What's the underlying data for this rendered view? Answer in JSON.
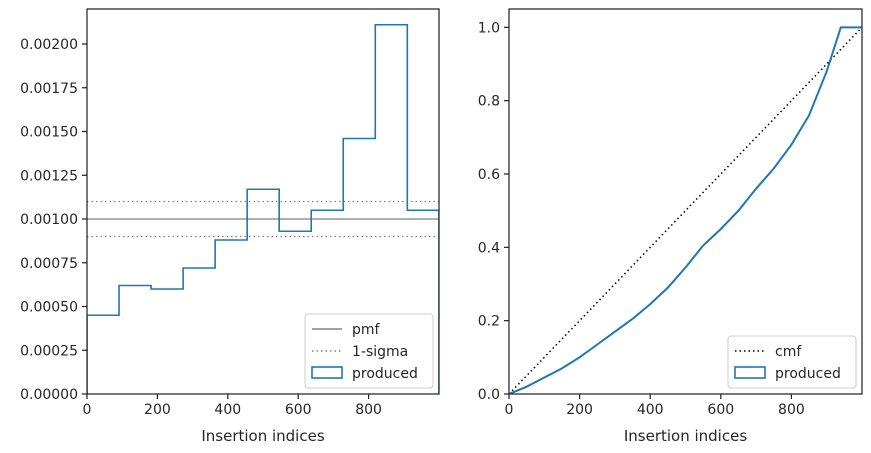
{
  "chart_data": [
    {
      "type": "step",
      "xlabel": "Insertion indices",
      "ylabel": "",
      "xlim": [
        0,
        1000
      ],
      "ylim": [
        0,
        0.0022
      ],
      "x_ticks": [
        0,
        200,
        400,
        600,
        800
      ],
      "x_tick_labels": [
        "0",
        "200",
        "400",
        "600",
        "800"
      ],
      "y_ticks": [
        0,
        0.00025,
        0.0005,
        0.00075,
        0.001,
        0.00125,
        0.0015,
        0.00175,
        0.002
      ],
      "y_tick_labels": [
        "0.00000",
        "0.00025",
        "0.00050",
        "0.00075",
        "0.00100",
        "0.00125",
        "0.00150",
        "0.00175",
        "0.00200"
      ],
      "pmf": 0.001,
      "sigma_band": [
        0.0009,
        0.0011
      ],
      "series": [
        {
          "name": "produced",
          "bin_edges": [
            0,
            91,
            182,
            273,
            364,
            455,
            546,
            637,
            728,
            819,
            910,
            1000
          ],
          "values": [
            0.00045,
            0.00062,
            0.0006,
            0.00072,
            0.00088,
            0.00117,
            0.00093,
            0.00105,
            0.00146,
            0.00211,
            0.00105
          ],
          "color": "#1f77b4"
        }
      ],
      "legend": {
        "placement": "lower right",
        "entries": [
          {
            "label": "pmf",
            "style": "solid",
            "color": "#808080"
          },
          {
            "label": "1-sigma",
            "style": "dotted",
            "color": "#808080"
          },
          {
            "label": "produced",
            "style": "patch",
            "color": "#1f77b4"
          }
        ]
      },
      "grid": false
    },
    {
      "type": "line",
      "xlabel": "Insertion indices",
      "ylabel": "",
      "xlim": [
        0,
        1000
      ],
      "ylim": [
        0,
        1.05
      ],
      "x_ticks": [
        0,
        200,
        400,
        600,
        800
      ],
      "x_tick_labels": [
        "0",
        "200",
        "400",
        "600",
        "800"
      ],
      "y_ticks": [
        0,
        0.2,
        0.4,
        0.6,
        0.8,
        1.0
      ],
      "y_tick_labels": [
        "0.0",
        "0.2",
        "0.4",
        "0.6",
        "0.8",
        "1.0"
      ],
      "series": [
        {
          "name": "cmf",
          "style": "dotted",
          "color": "#000000",
          "x": [
            0,
            1000
          ],
          "y": [
            0,
            1.0
          ]
        },
        {
          "name": "produced",
          "style": "solid",
          "color": "#1f77b4",
          "x": [
            0,
            50,
            100,
            150,
            200,
            250,
            300,
            350,
            400,
            450,
            500,
            550,
            600,
            650,
            700,
            750,
            800,
            850,
            900,
            940,
            960,
            1000
          ],
          "y": [
            0,
            0.02,
            0.045,
            0.07,
            0.1,
            0.135,
            0.17,
            0.205,
            0.245,
            0.29,
            0.345,
            0.405,
            0.45,
            0.5,
            0.56,
            0.615,
            0.68,
            0.76,
            0.88,
            1.0,
            1.0,
            1.0
          ]
        }
      ],
      "legend": {
        "placement": "lower right",
        "entries": [
          {
            "label": "cmf",
            "style": "dotted",
            "color": "#000000"
          },
          {
            "label": "produced",
            "style": "patch",
            "color": "#1f77b4"
          }
        ]
      },
      "grid": false
    }
  ]
}
